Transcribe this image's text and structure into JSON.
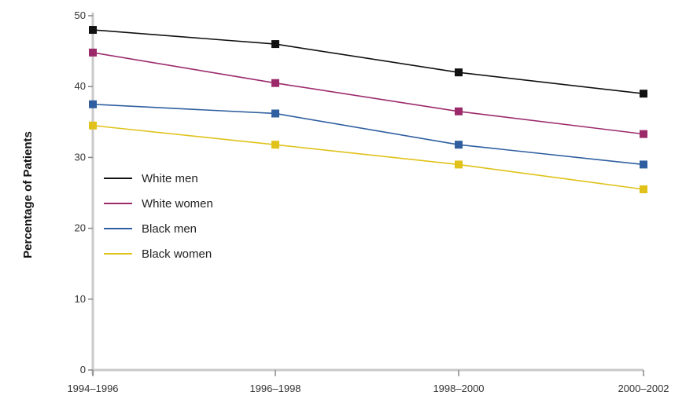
{
  "chart_data": {
    "type": "line",
    "title": "",
    "xlabel": "",
    "ylabel": "Percentage of Patients",
    "categories": [
      "1994–1996",
      "1996–1998",
      "1998–2000",
      "2000–2002"
    ],
    "ylim": [
      0,
      50
    ],
    "yticks": [
      0,
      10,
      20,
      30,
      40,
      50
    ],
    "grid": false,
    "legend_position": "left",
    "series": [
      {
        "name": "White men",
        "color": "#111111",
        "values": [
          48,
          46,
          42,
          39
        ]
      },
      {
        "name": "White women",
        "color": "#9c2a6b",
        "values": [
          44.8,
          40.5,
          36.5,
          33.3
        ]
      },
      {
        "name": "Black men",
        "color": "#2f5fa0",
        "values": [
          37.5,
          36.2,
          31.8,
          29
        ]
      },
      {
        "name": "Black women",
        "color": "#e0c21a",
        "values": [
          34.5,
          31.8,
          29,
          25.5
        ]
      }
    ]
  }
}
